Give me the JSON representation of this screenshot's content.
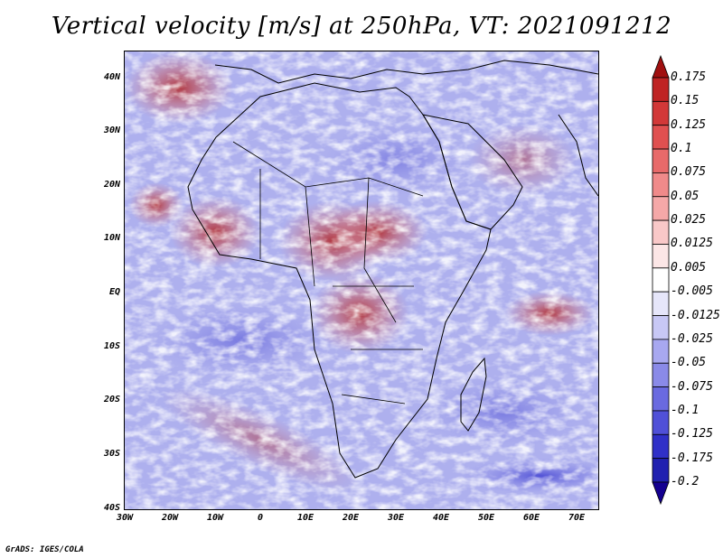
{
  "title": "Vertical velocity [m/s] at 250hPa, VT: 2021091212",
  "footer": "GrADS: IGES/COLA",
  "lat_labels": [
    "40N",
    "30N",
    "20N",
    "10N",
    "EQ",
    "10S",
    "20S",
    "30S",
    "40S"
  ],
  "lon_labels": [
    "30W",
    "20W",
    "10W",
    "0",
    "10E",
    "20E",
    "30E",
    "40E",
    "50E",
    "60E",
    "70E"
  ],
  "colorbar": {
    "labels": [
      "0.175",
      "0.15",
      "0.125",
      "0.1",
      "0.075",
      "0.05",
      "0.025",
      "0.0125",
      "0.005",
      "-0.005",
      "-0.0125",
      "-0.025",
      "-0.05",
      "-0.075",
      "-0.1",
      "-0.125",
      "-0.175",
      "-0.2"
    ],
    "colors": [
      "#a01010",
      "#bf2424",
      "#d23838",
      "#e05050",
      "#e86a6a",
      "#f08a8a",
      "#f5a8a8",
      "#f9c8c8",
      "#fce6e6",
      "#ffffff",
      "#e6e6fa",
      "#c8c8f5",
      "#a8a8f0",
      "#8a8ae8",
      "#6a6ae0",
      "#5050d8",
      "#3030c8",
      "#2020b0",
      "#140090"
    ]
  }
}
